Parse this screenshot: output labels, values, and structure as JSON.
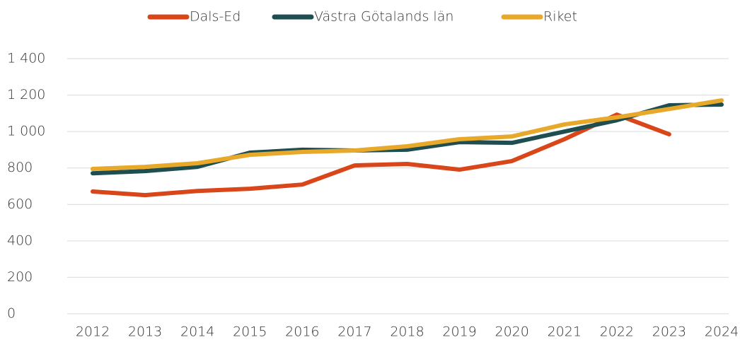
{
  "chart_data": {
    "type": "line",
    "categories": [
      "2012",
      "2013",
      "2014",
      "2015",
      "2016",
      "2017",
      "2018",
      "2019",
      "2020",
      "2021",
      "2022",
      "2023",
      "2024"
    ],
    "series": [
      {
        "name": "Dals-Ed",
        "color": "#d9461a",
        "values": [
          671,
          651,
          674,
          686,
          709,
          814,
          822,
          791,
          838,
          958,
          1093,
          985,
          null
        ]
      },
      {
        "name": "Västra Götalands län",
        "color": "#1f4e50",
        "values": [
          771,
          783,
          806,
          884,
          900,
          896,
          900,
          942,
          938,
          1000,
          1062,
          1144,
          1148
        ]
      },
      {
        "name": "Riket",
        "color": "#e8a82a",
        "values": [
          795,
          806,
          826,
          872,
          888,
          896,
          919,
          958,
          973,
          1039,
          1078,
          1124,
          1171
        ]
      }
    ],
    "ylim": [
      0,
      1400
    ],
    "yticks": [
      0,
      200,
      400,
      600,
      800,
      {
        "value": 1000,
        "label": "1 000"
      },
      {
        "value": 1200,
        "label": "1 200"
      },
      {
        "value": 1400,
        "label": "1 400"
      }
    ],
    "grid": true,
    "legend": "top"
  }
}
